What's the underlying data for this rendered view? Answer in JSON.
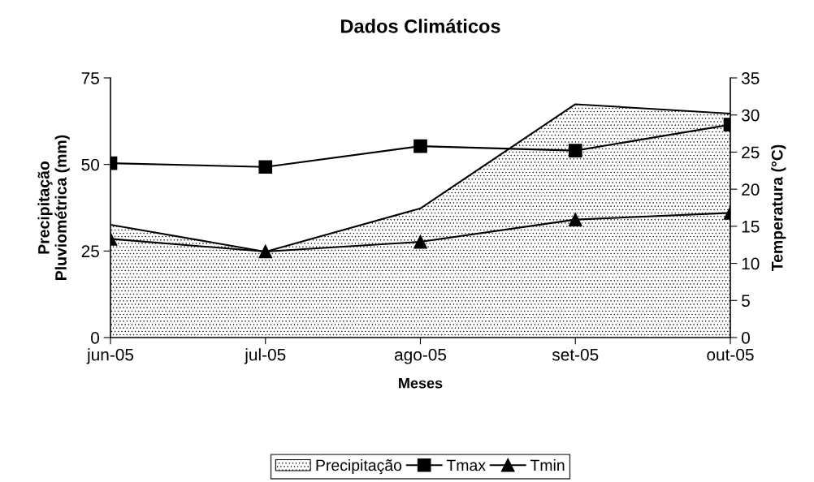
{
  "chart_data": {
    "type": "line",
    "title": "Dados Climáticos",
    "xlabel": "Meses",
    "ylabel": "Precipitação\nPluviométrica (mm)",
    "y2label": "Temperatura (°C)",
    "categories": [
      "jun-05",
      "jul-05",
      "ago-05",
      "set-05",
      "out-05"
    ],
    "series": [
      {
        "name": "Precipitação",
        "type": "area",
        "color": "#000000",
        "values": [
          32.6,
          24.8,
          37.3,
          67.4,
          64.7
        ]
      },
      {
        "name": "Tmax",
        "axis": "y2",
        "marker": "square",
        "color": "#000000",
        "values": [
          23.5,
          23.0,
          25.8,
          25.2,
          28.7
        ]
      },
      {
        "name": "Tmin",
        "axis": "y2",
        "marker": "triangle",
        "color": "#000000",
        "values": [
          13.3,
          11.6,
          12.9,
          15.9,
          16.8
        ]
      }
    ],
    "ylim": [
      0,
      75
    ],
    "yticks": [
      0,
      25,
      50,
      75
    ],
    "y2lim": [
      0,
      35
    ],
    "y2ticks": [
      0,
      5,
      10,
      15,
      20,
      25,
      30,
      35
    ],
    "grid": false,
    "legend": "bottom"
  }
}
